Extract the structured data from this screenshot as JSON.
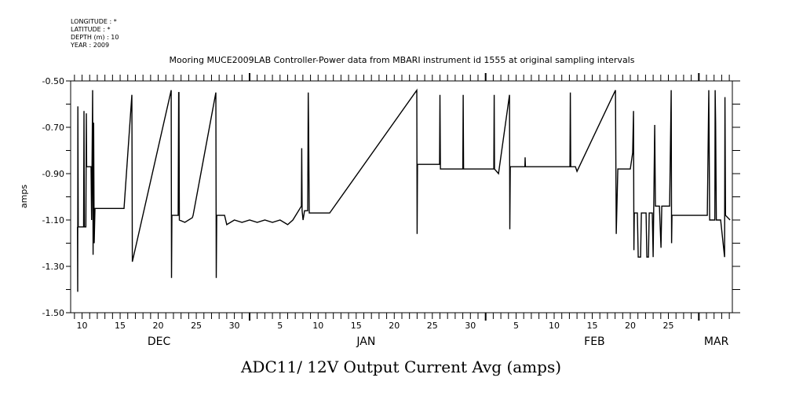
{
  "header": {
    "lines": [
      "LONGITUDE : *",
      "LATITUDE : *",
      "DEPTH (m) : 10",
      "YEAR : 2009"
    ]
  },
  "chart_data": {
    "type": "line",
    "title": "Mooring MUCE2009LAB Controller-Power data from MBARI instrument id 1555 at original sampling intervals",
    "xlabel": "ADC11/ 12V Output Current Avg (amps)",
    "ylabel": "amps",
    "x_units": "day number counted from Dec 1 (Jan N = 31+N, Feb N = 62+N, Mar N = 90+N)",
    "xlim": [
      8.5,
      95.4
    ],
    "ylim": [
      -1.5,
      -0.5
    ],
    "grid": false,
    "yticks": [
      -0.5,
      -0.7,
      -0.9,
      -1.1,
      -1.3,
      -1.5
    ],
    "ytick_labels": [
      "-0.50",
      "-0.70",
      "-0.90",
      "-1.10",
      "-1.30",
      "-1.50"
    ],
    "xticks": [
      {
        "day": 10,
        "label": "10"
      },
      {
        "day": 15,
        "label": "15"
      },
      {
        "day": 20,
        "label": "20"
      },
      {
        "day": 25,
        "label": "25"
      },
      {
        "day": 30,
        "label": "30"
      },
      {
        "day": 36,
        "label": "5"
      },
      {
        "day": 41,
        "label": "10"
      },
      {
        "day": 46,
        "label": "15"
      },
      {
        "day": 51,
        "label": "20"
      },
      {
        "day": 56,
        "label": "25"
      },
      {
        "day": 61,
        "label": "30"
      },
      {
        "day": 67,
        "label": "5"
      },
      {
        "day": 72,
        "label": "10"
      },
      {
        "day": 77,
        "label": "15"
      },
      {
        "day": 82,
        "label": "20"
      },
      {
        "day": 87,
        "label": "25"
      }
    ],
    "month_labels": [
      {
        "day": 20.1,
        "label": "DEC"
      },
      {
        "day": 47.3,
        "label": "JAN"
      },
      {
        "day": 77.3,
        "label": "FEB"
      },
      {
        "day": 93.3,
        "label": "MAR"
      }
    ],
    "month_boundaries": [
      32,
      63,
      91
    ],
    "series": [
      {
        "name": "ADC11/ 12V Output Current Avg",
        "points": [
          [
            9.4,
            -1.13
          ],
          [
            9.43,
            -1.41
          ],
          [
            9.45,
            -0.61
          ],
          [
            9.5,
            -1.13
          ],
          [
            10.2,
            -1.13
          ],
          [
            10.25,
            -0.63
          ],
          [
            10.3,
            -1.13
          ],
          [
            10.5,
            -1.13
          ],
          [
            10.56,
            -0.64
          ],
          [
            10.6,
            -0.87
          ],
          [
            11.18,
            -0.87
          ],
          [
            11.25,
            -1.1
          ],
          [
            11.39,
            -0.54
          ],
          [
            11.45,
            -1.25
          ],
          [
            11.52,
            -0.68
          ],
          [
            11.59,
            -1.2
          ],
          [
            11.7,
            -1.05
          ],
          [
            15.51,
            -1.05
          ],
          [
            16.54,
            -0.56
          ],
          [
            16.6,
            -1.28
          ],
          [
            21.7,
            -0.54
          ],
          [
            21.75,
            -1.35
          ],
          [
            21.8,
            -1.08
          ],
          [
            22.62,
            -1.08
          ],
          [
            22.68,
            -0.55
          ],
          [
            22.73,
            -0.55
          ],
          [
            22.78,
            -1.1
          ],
          [
            23.5,
            -1.11
          ],
          [
            24.48,
            -1.09
          ],
          [
            24.58,
            -1.08
          ],
          [
            27.57,
            -0.55
          ],
          [
            27.62,
            -1.35
          ],
          [
            27.68,
            -1.08
          ],
          [
            28.71,
            -1.08
          ],
          [
            29.0,
            -1.12
          ],
          [
            30,
            -1.1
          ],
          [
            31,
            -1.11
          ],
          [
            32,
            -1.1
          ],
          [
            33,
            -1.11
          ],
          [
            34,
            -1.1
          ],
          [
            35,
            -1.11
          ],
          [
            36,
            -1.1
          ],
          [
            37,
            -1.12
          ],
          [
            37.68,
            -1.1
          ],
          [
            38.81,
            -1.04
          ],
          [
            38.85,
            -0.79
          ],
          [
            38.9,
            -1.06
          ],
          [
            39.02,
            -1.1
          ],
          [
            39.22,
            -1.06
          ],
          [
            39.63,
            -1.06
          ],
          [
            39.7,
            -0.55
          ],
          [
            39.74,
            -0.68
          ],
          [
            39.84,
            -1.07
          ],
          [
            42.52,
            -1.07
          ],
          [
            53.96,
            -0.54
          ],
          [
            54.0,
            -1.16
          ],
          [
            54.05,
            -0.86
          ],
          [
            56.95,
            -0.86
          ],
          [
            57.0,
            -0.56
          ],
          [
            57.06,
            -0.88
          ],
          [
            60.0,
            -0.88
          ],
          [
            60.05,
            -0.56
          ],
          [
            60.1,
            -0.88
          ],
          [
            64.07,
            -0.88
          ],
          [
            64.12,
            -0.56
          ],
          [
            64.17,
            -0.88
          ],
          [
            64.69,
            -0.9
          ],
          [
            66.13,
            -0.56
          ],
          [
            66.18,
            -1.14
          ],
          [
            66.24,
            -0.87
          ],
          [
            68.15,
            -0.87
          ],
          [
            68.19,
            -0.83
          ],
          [
            68.23,
            -0.87
          ],
          [
            74.07,
            -0.87
          ],
          [
            74.12,
            -0.55
          ],
          [
            74.17,
            -0.87
          ],
          [
            74.79,
            -0.87
          ],
          [
            75.0,
            -0.89
          ],
          [
            80.05,
            -0.54
          ],
          [
            80.15,
            -1.16
          ],
          [
            80.36,
            -0.88
          ],
          [
            82.0,
            -0.88
          ],
          [
            82.31,
            -0.81
          ],
          [
            82.42,
            -0.63
          ],
          [
            82.47,
            -1.23
          ],
          [
            82.52,
            -1.07
          ],
          [
            82.93,
            -1.07
          ],
          [
            83.04,
            -1.26
          ],
          [
            83.35,
            -1.26
          ],
          [
            83.45,
            -1.07
          ],
          [
            84.07,
            -1.07
          ],
          [
            84.17,
            -1.26
          ],
          [
            84.38,
            -1.26
          ],
          [
            84.48,
            -1.07
          ],
          [
            84.89,
            -1.07
          ],
          [
            85.0,
            -1.26
          ],
          [
            85.2,
            -0.69
          ],
          [
            85.3,
            -1.04
          ],
          [
            85.82,
            -1.04
          ],
          [
            86.03,
            -1.22
          ],
          [
            86.13,
            -1.04
          ],
          [
            87.16,
            -1.04
          ],
          [
            87.37,
            -0.54
          ],
          [
            87.42,
            -1.2
          ],
          [
            87.47,
            -1.08
          ],
          [
            92.11,
            -1.08
          ],
          [
            92.31,
            -0.54
          ],
          [
            92.42,
            -1.1
          ],
          [
            93.1,
            -1.1
          ],
          [
            93.14,
            -0.54
          ],
          [
            93.2,
            -0.68
          ],
          [
            93.3,
            -1.1
          ],
          [
            93.86,
            -1.1
          ],
          [
            94.38,
            -1.26
          ],
          [
            94.43,
            -0.57
          ],
          [
            94.5,
            -1.08
          ],
          [
            95.1,
            -1.1
          ]
        ]
      }
    ]
  }
}
